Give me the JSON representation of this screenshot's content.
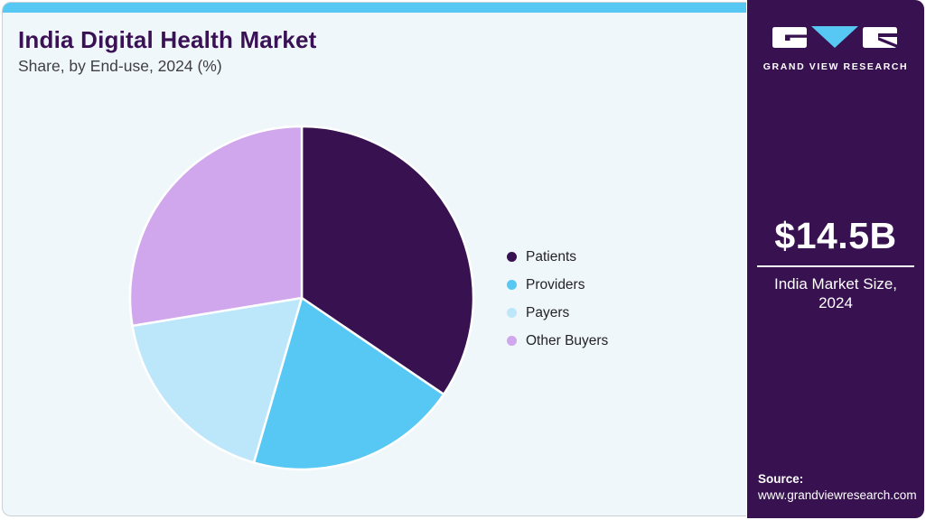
{
  "header": {
    "title": "India Digital Health Market",
    "subtitle": "Share, by End-use, 2024 (%)"
  },
  "chart_data": {
    "type": "pie",
    "title": "India Digital Health Market Share, by End-use, 2024 (%)",
    "categories": [
      "Patients",
      "Providers",
      "Payers",
      "Other Buyers"
    ],
    "values": [
      34.5,
      20.0,
      17.9,
      27.6
    ],
    "unit": "%",
    "colors": [
      "#371150",
      "#57c7f4",
      "#bce7fa",
      "#d0a6ec"
    ],
    "legend_position": "right",
    "start_angle_deg": 0,
    "direction": "clockwise"
  },
  "sidebar": {
    "brand": "GRAND VIEW RESEARCH",
    "market_size_value": "$14.5B",
    "market_size_label": "India Market Size, 2024",
    "source_label": "Source:",
    "source_url": "www.grandviewresearch.com",
    "background_color": "#371150",
    "accent_color": "#57c7f3"
  }
}
